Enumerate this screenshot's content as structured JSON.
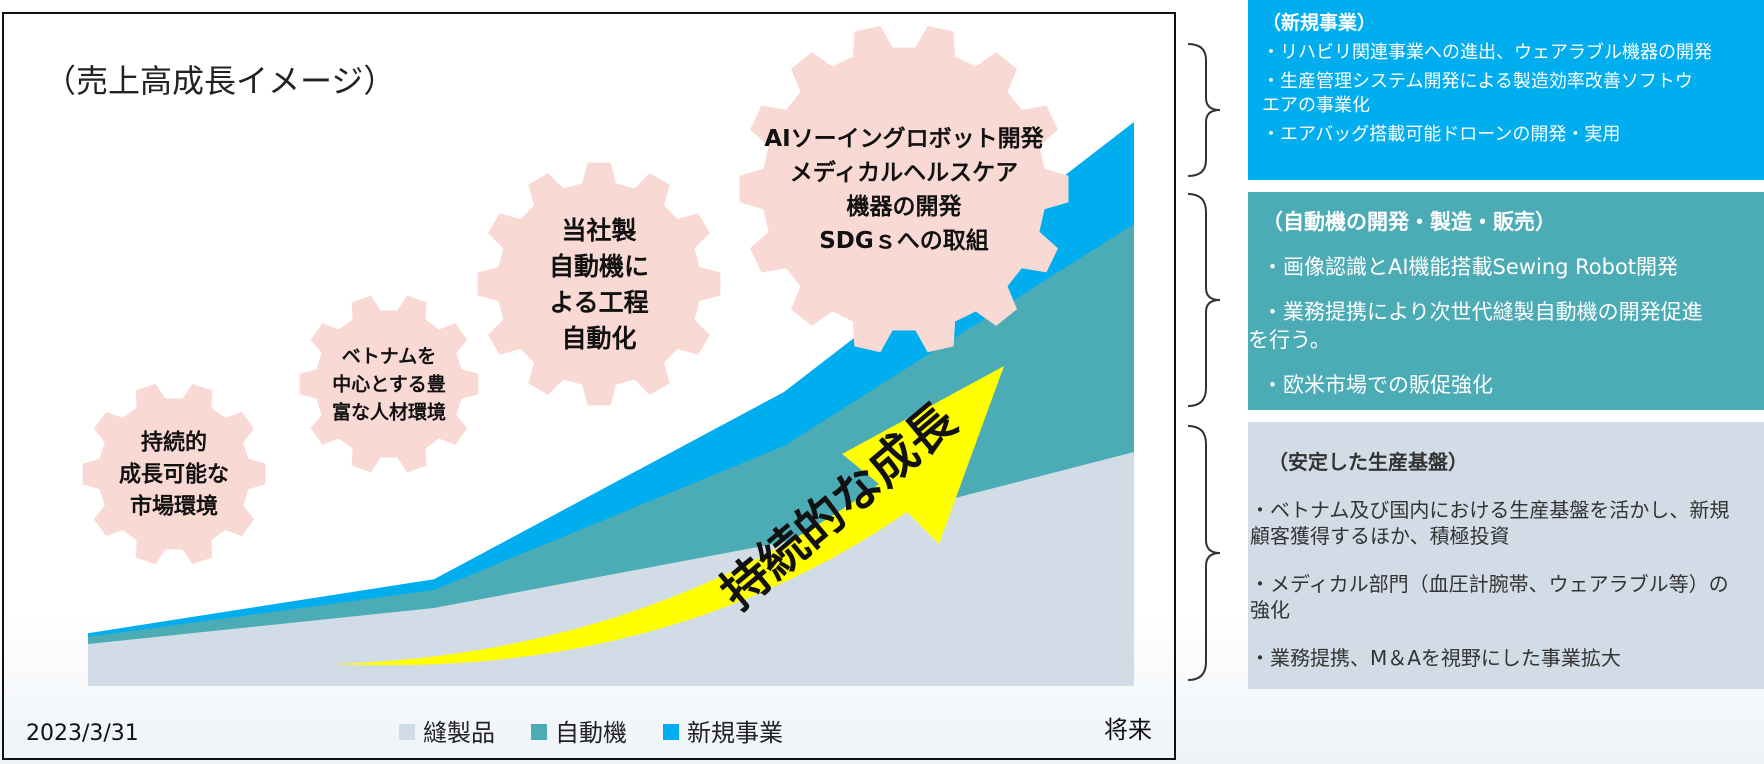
{
  "chart_data": {
    "type": "area",
    "title": "（売上高成長イメージ）",
    "x": [
      "2023/3/31",
      "",
      "",
      "将来"
    ],
    "xlabel": "",
    "ylabel": "",
    "series": [
      {
        "name": "縫製品",
        "color": "#d2dce6",
        "values": [
          3.5,
          6.5,
          12.0,
          19.5
        ]
      },
      {
        "name": "自動機",
        "color": "#4bacb6",
        "values": [
          0.6,
          1.5,
          8.0,
          19.0
        ]
      },
      {
        "name": "新規事業",
        "color": "#00aeef",
        "values": [
          0.3,
          0.9,
          4.5,
          8.5
        ]
      }
    ],
    "ylim": [
      0,
      50
    ],
    "grid": false,
    "legend": "bottom"
  },
  "gears": [
    {
      "lines": [
        "持続的",
        "成長可能な",
        "市場環境"
      ]
    },
    {
      "lines": [
        "ベトナムを",
        "中心とする豊",
        "富な人材環境"
      ]
    },
    {
      "lines": [
        "当社製",
        "自動機に",
        "よる工程",
        "自動化"
      ]
    },
    {
      "lines": [
        "AIソーイングロボット開発",
        "メディカルヘルスケア",
        "機器の開発",
        "SDGｓへの取組"
      ]
    }
  ],
  "arrow": {
    "label": "持続的な成長",
    "color": "#ffff00"
  },
  "colors": {
    "gear": "#f9d9d4",
    "new": "#00aeef",
    "auto": "#4bacb6",
    "stable": "#d2dce6"
  },
  "panels": {
    "new": {
      "title": "（新規事業）",
      "items": [
        "・リハビリ関連事業への進出、ウェアラブル機器の開発",
        "・生産管理システム開発による製造効率改善ソフトウ",
        "エアの事業化",
        "・エアバッグ搭載可能ドローンの開発・実用"
      ]
    },
    "auto": {
      "title": "（自動機の開発・製造・販売）",
      "items": [
        "・画像認識とAI機能搭載Sewing Robot開発",
        "・業務提携により次世代縫製自動機の開発促進",
        "を行う。",
        "・欧米市場での販促強化"
      ]
    },
    "stable": {
      "title": "（安定した生産基盤）",
      "items": [
        "・ベトナム及び国内における生産基盤を活かし、新規",
        "顧客獲得するほか、積極投資",
        "・メディカル部門（血圧計腕帯、ウェアラブル等）の",
        "強化",
        "・業務提携、M＆Aを視野にした事業拡大"
      ]
    }
  }
}
